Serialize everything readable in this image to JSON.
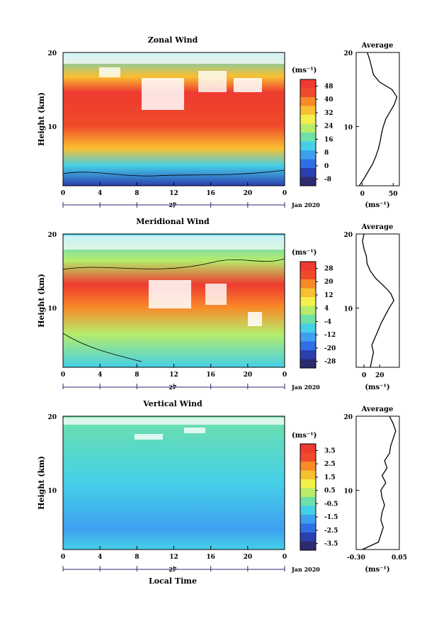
{
  "date_label": "Jan 2020",
  "day_label": "27",
  "ylabel": "Height (km)",
  "xlabel_bottom": "Local Time",
  "colorbar_unit": "(ms⁻¹)",
  "profile_title": "Average",
  "profile_unit": "(ms⁻¹)",
  "colors": {
    "scale": [
      "#2b2b6e",
      "#2a3fb0",
      "#2f6fe6",
      "#3ea0f0",
      "#45d0e8",
      "#6ee0a8",
      "#b6ec6a",
      "#f4f04a",
      "#f8c030",
      "#f88a28",
      "#f04a2a",
      "#ee3a30"
    ],
    "missing": "#ffffff",
    "frame": "#000000",
    "axis_time": "#2b2b6e"
  },
  "chart_data": [
    {
      "type": "heatmap",
      "title": "Zonal Wind",
      "xlabel": "",
      "ylabel": "Height (km)",
      "x_ticks": [
        "0",
        "4",
        "8",
        "12",
        "16",
        "20",
        "0"
      ],
      "x_range": [
        0,
        24
      ],
      "ylim": [
        2,
        20
      ],
      "y_ticks": [
        "10",
        "20"
      ],
      "colorbar": {
        "ticks": [
          "48",
          "40",
          "32",
          "24",
          "16",
          "8",
          "0",
          "-8"
        ],
        "range": [
          -12,
          52
        ]
      },
      "profile": {
        "xlim": [
          -10,
          60
        ],
        "x_ticks": [
          "0",
          "50"
        ],
        "y_ticks": [
          "10",
          "20"
        ],
        "heights": [
          2,
          3,
          4,
          5,
          6,
          7,
          8,
          9,
          10,
          11,
          12,
          13,
          14,
          15,
          16,
          17,
          18,
          19,
          20
        ],
        "values": [
          -5,
          3,
          10,
          17,
          22,
          26,
          29,
          31,
          34,
          38,
          45,
          52,
          56,
          48,
          28,
          18,
          15,
          12,
          8
        ]
      }
    },
    {
      "type": "heatmap",
      "title": "Meridional Wind",
      "xlabel": "",
      "ylabel": "Height (km)",
      "x_ticks": [
        "0",
        "4",
        "8",
        "12",
        "16",
        "20",
        "0"
      ],
      "x_range": [
        0,
        24
      ],
      "ylim": [
        2,
        20
      ],
      "y_ticks": [
        "10",
        "20"
      ],
      "colorbar": {
        "ticks": [
          "28",
          "20",
          "12",
          "4",
          "-4",
          "-12",
          "-20",
          "-28"
        ],
        "range": [
          -32,
          32
        ]
      },
      "profile": {
        "xlim": [
          -10,
          45
        ],
        "x_ticks": [
          "0",
          "20"
        ],
        "y_ticks": [
          "10",
          "20"
        ],
        "heights": [
          2,
          3,
          4,
          5,
          6,
          7,
          8,
          9,
          10,
          11,
          12,
          13,
          14,
          15,
          16,
          17,
          18,
          19,
          20
        ],
        "values": [
          8,
          10,
          12,
          10,
          14,
          18,
          22,
          27,
          32,
          38,
          34,
          25,
          15,
          8,
          4,
          3,
          0,
          -2,
          0
        ]
      }
    },
    {
      "type": "heatmap",
      "title": "Vertical Wind",
      "xlabel": "Local Time",
      "ylabel": "Height (km)",
      "x_ticks": [
        "0",
        "4",
        "8",
        "12",
        "16",
        "20",
        "0"
      ],
      "x_range": [
        0,
        24
      ],
      "ylim": [
        2,
        20
      ],
      "y_ticks": [
        "10",
        "20"
      ],
      "colorbar": {
        "ticks": [
          "3.5",
          "2.5",
          "1.5",
          "0.5",
          "-0.5",
          "-1.5",
          "-2.5",
          "-3.5"
        ],
        "range": [
          -4,
          4
        ]
      },
      "profile": {
        "xlim": [
          -0.3,
          0.05
        ],
        "x_ticks": [
          "-0.30",
          "0.05"
        ],
        "y_ticks": [
          "10",
          "20"
        ],
        "heights": [
          2,
          3,
          4,
          5,
          6,
          7,
          8,
          9,
          10,
          11,
          12,
          13,
          14,
          15,
          16,
          17,
          18,
          19,
          20
        ],
        "values": [
          -0.25,
          -0.12,
          -0.1,
          -0.08,
          -0.1,
          -0.09,
          -0.07,
          -0.09,
          -0.1,
          -0.06,
          -0.09,
          -0.05,
          -0.07,
          -0.03,
          -0.02,
          0.0,
          0.02,
          0.0,
          -0.03
        ]
      }
    }
  ]
}
